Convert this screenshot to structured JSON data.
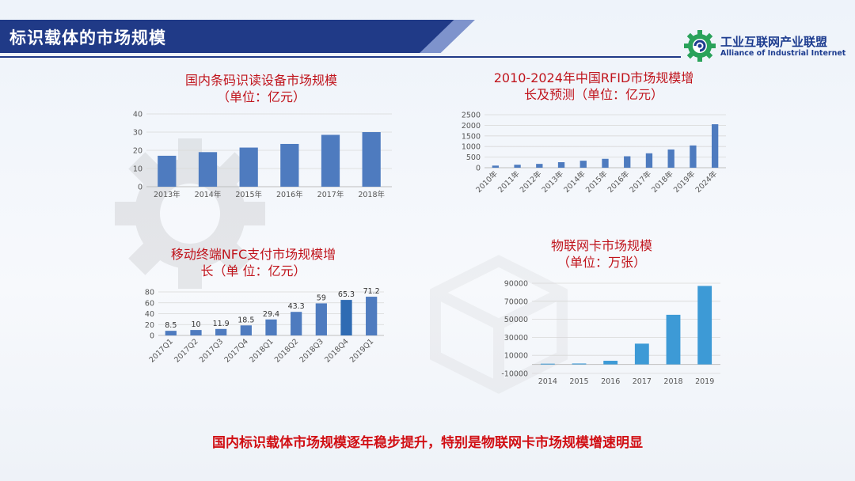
{
  "header": {
    "title": "标识载体的市场规模"
  },
  "logo": {
    "name_cn": "工业互联网产业联盟",
    "name_en": "Alliance of Industrial Internet"
  },
  "colors": {
    "banner": "#203a87",
    "bar": "#4e7bbf",
    "bar_light": "#3d9ad6",
    "title_red": "#c0141c"
  },
  "chart_data": [
    {
      "type": "bar",
      "title_lines": [
        "国内条码识读设备市场规模",
        "（单位：亿元）"
      ],
      "categories": [
        "2013年",
        "2014年",
        "2015年",
        "2016年",
        "2017年",
        "2018年"
      ],
      "values": [
        17,
        19,
        21.5,
        23.5,
        28.5,
        30
      ],
      "ylim": [
        0,
        40
      ],
      "yticks": [
        0,
        10,
        20,
        30,
        40
      ],
      "grid": true
    },
    {
      "type": "bar",
      "title_lines": [
        "2010-2024年中国RFID市场规模增",
        "长及预测（单位：亿元）"
      ],
      "categories": [
        "2010年",
        "2011年",
        "2012年",
        "2013年",
        "2014年",
        "2015年",
        "2016年",
        "2017年",
        "2018年",
        "2019年",
        "2024年"
      ],
      "values": [
        100,
        140,
        180,
        260,
        330,
        420,
        540,
        680,
        860,
        1050,
        2050
      ],
      "ylim": [
        0,
        2500
      ],
      "yticks": [
        0,
        500,
        1000,
        1500,
        2000,
        2500
      ],
      "grid": true
    },
    {
      "type": "bar",
      "title_lines": [
        "移动终端NFC支付市场规模增",
        "长（单 位：亿元）"
      ],
      "categories": [
        "2017Q1",
        "2017Q2",
        "2017Q3",
        "2017Q4",
        "2018Q1",
        "2018Q2",
        "2018Q3",
        "2018Q4",
        "2019Q1"
      ],
      "values": [
        8.5,
        10,
        11.9,
        18.5,
        29.4,
        43.3,
        59,
        65.3,
        71.2
      ],
      "data_labels": [
        "8.5",
        "10",
        "11.9",
        "18.5",
        "29.4",
        "43.3",
        "59",
        "65.3",
        "71.2"
      ],
      "ylim": [
        0,
        80
      ],
      "yticks": [
        0,
        20,
        40,
        60,
        80
      ],
      "grid": true
    },
    {
      "type": "bar",
      "title_lines": [
        "物联网卡市场规模",
        "（单位：万张）"
      ],
      "categories": [
        "2014",
        "2015",
        "2016",
        "2017",
        "2018",
        "2019"
      ],
      "values": [
        800,
        1000,
        4000,
        23000,
        55000,
        87000
      ],
      "ylim": [
        -10000,
        90000
      ],
      "yticks": [
        -10000,
        10000,
        30000,
        50000,
        70000,
        90000
      ],
      "grid": true
    }
  ],
  "conclusion": "国内标识载体市场规模逐年稳步提升，特别是物联网卡市场规模增速明显"
}
